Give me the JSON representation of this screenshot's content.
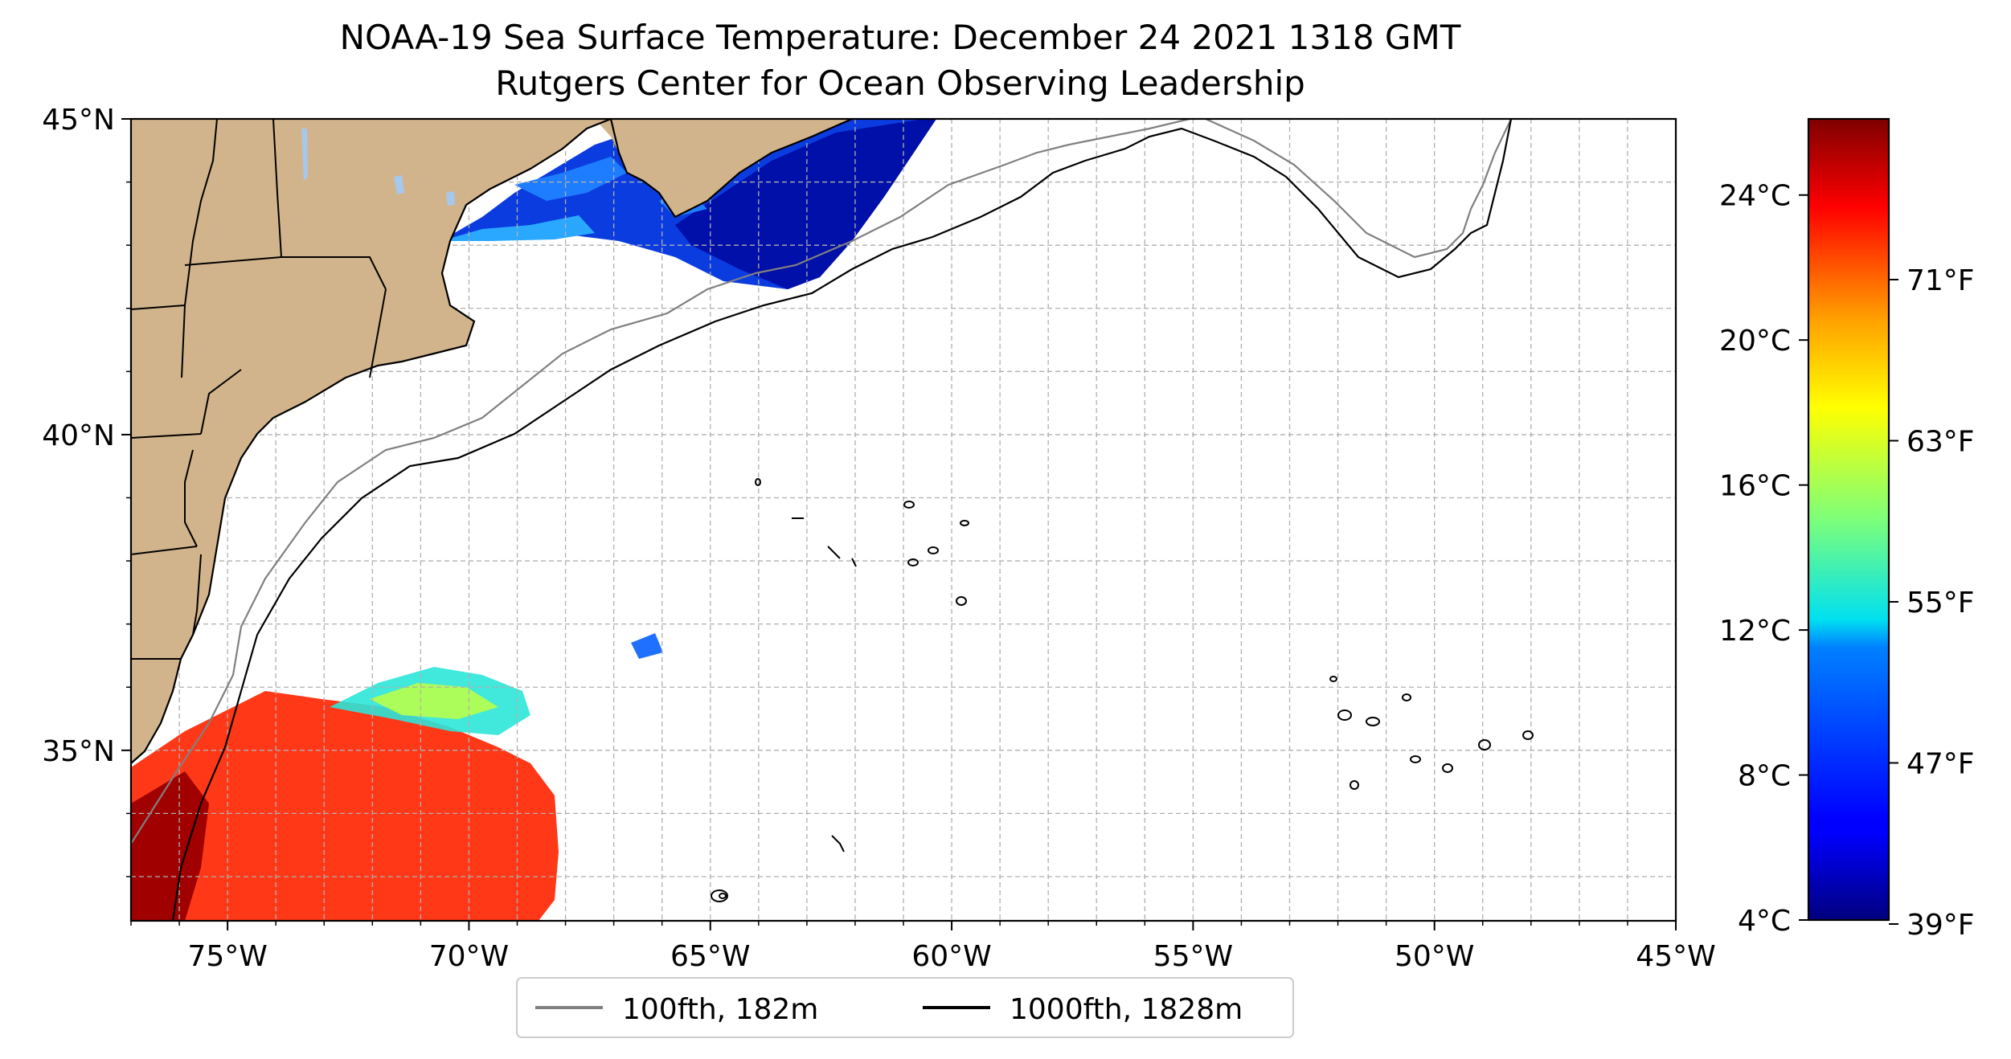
{
  "title": "NOAA-19 Sea Surface Temperature: December 24 2021 1318 GMT",
  "subtitle": "Rutgers Center for Ocean Observing Leadership",
  "map": {
    "lon_range": [
      -77,
      -45
    ],
    "lat_range": [
      32.3,
      45
    ],
    "x_ticks": [
      {
        "value": -75,
        "label": "75°W"
      },
      {
        "value": -70,
        "label": "70°W"
      },
      {
        "value": -65,
        "label": "65°W"
      },
      {
        "value": -60,
        "label": "60°W"
      },
      {
        "value": -55,
        "label": "55°W"
      },
      {
        "value": -50,
        "label": "50°W"
      },
      {
        "value": -45,
        "label": "45°W"
      }
    ],
    "y_ticks": [
      {
        "value": 45,
        "label": "45°N"
      },
      {
        "value": 40,
        "label": "40°N"
      },
      {
        "value": 35,
        "label": "35°N"
      }
    ],
    "grid": true,
    "colors": {
      "land": "#d2b48c",
      "lakes": "#a6c8ec",
      "contour_100fth": "#808080",
      "contour_1000fth": "#000000",
      "grid": "#b0b0b0"
    }
  },
  "legend": {
    "placement": "bottom-center",
    "items": [
      {
        "label": "100fth, 182m",
        "color": "#808080"
      },
      {
        "label": "1000fth, 1828m",
        "color": "#000000"
      }
    ]
  },
  "colorbar": {
    "colormap": "jet",
    "range_c": [
      4,
      26.1
    ],
    "celsius_ticks": [
      {
        "value": 24,
        "label": "24°C"
      },
      {
        "value": 20,
        "label": "20°C"
      },
      {
        "value": 16,
        "label": "16°C"
      },
      {
        "value": 12,
        "label": "12°C"
      },
      {
        "value": 8,
        "label": "8°C"
      },
      {
        "value": 4,
        "label": "4°C"
      }
    ],
    "fahrenheit_ticks": [
      {
        "value": 71,
        "label": "71°F"
      },
      {
        "value": 63,
        "label": "63°F"
      },
      {
        "value": 55,
        "label": "55°F"
      },
      {
        "value": 47,
        "label": "47°F"
      },
      {
        "value": 39,
        "label": "39°F"
      }
    ]
  }
}
